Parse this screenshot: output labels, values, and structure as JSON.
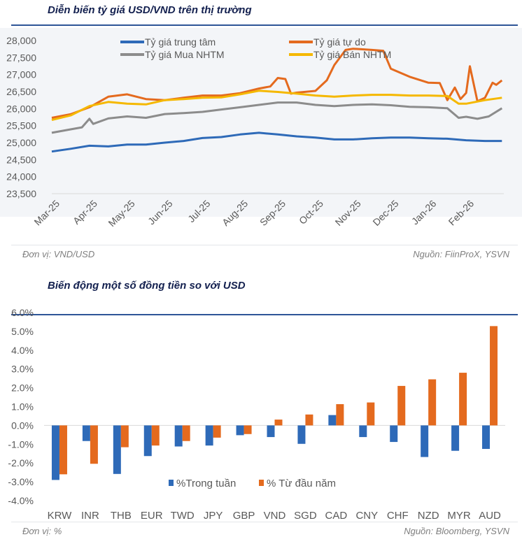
{
  "top": {
    "title": "Diễn biến tỷ giá USD/VND trên thị trường",
    "unit_note": "Đơn vị: VND/USD",
    "source_note": "Nguồn: FiinProX, YSVN"
  },
  "bottom": {
    "title": "Biến động một số đồng tiền so với USD",
    "unit_note": "Đơn vị: %",
    "source_note": "Nguồn: Bloomberg, YSVN"
  },
  "chart_data": [
    {
      "type": "line",
      "title": "Diễn biến tỷ giá USD/VND trên thị trường",
      "xlabel": "",
      "ylabel": "",
      "x_unit": "months since Mar-25",
      "x_ticks": [
        "Mar-25",
        "Apr-25",
        "May-25",
        "Jun-25",
        "Jul-25",
        "Aug-25",
        "Sep-25",
        "Oct-25",
        "Nov-25",
        "Dec-25",
        "Jan-26",
        "Feb-26"
      ],
      "y_ticks": [
        "28,000",
        "27,500",
        "27,000",
        "26,500",
        "26,000",
        "25,500",
        "25,000",
        "24,500",
        "24,000",
        "23,500"
      ],
      "ylim": [
        23500,
        28000
      ],
      "legend": "top",
      "grid": false,
      "series": [
        {
          "name": "Tỷ giá trung tâm",
          "color": "#2e6ab8",
          "x": [
            0,
            0.5,
            1,
            1.5,
            2,
            2.5,
            3,
            3.5,
            4,
            4.5,
            5,
            5.5,
            6,
            6.5,
            7,
            7.5,
            8,
            8.5,
            9,
            9.5,
            10,
            10.5,
            11,
            11.5,
            11.95
          ],
          "y": [
            24740,
            24820,
            24910,
            24890,
            24945,
            24945,
            25000,
            25050,
            25135,
            25165,
            25240,
            25290,
            25240,
            25185,
            25150,
            25095,
            25095,
            25130,
            25150,
            25150,
            25130,
            25115,
            25070,
            25050,
            25050
          ]
        },
        {
          "name": "Tỷ giá tự do",
          "color": "#e46a1e",
          "x": [
            0,
            0.5,
            1,
            1.5,
            2,
            2.5,
            3,
            3.5,
            4,
            4.5,
            5,
            5.5,
            5.8,
            6,
            6.2,
            6.35,
            6.5,
            7,
            7.3,
            7.5,
            7.8,
            8,
            8.5,
            8.8,
            9,
            9.5,
            10,
            10.3,
            10.5,
            10.7,
            10.85,
            11,
            11.1,
            11.3,
            11.5,
            11.7,
            11.8,
            11.95
          ],
          "y": [
            25730,
            25835,
            26040,
            26350,
            26420,
            26280,
            26250,
            26320,
            26385,
            26385,
            26455,
            26590,
            26650,
            26900,
            26870,
            26440,
            26470,
            26520,
            26830,
            27280,
            27725,
            27760,
            27725,
            27700,
            27175,
            26935,
            26760,
            26750,
            26250,
            26620,
            26280,
            26460,
            27245,
            26215,
            26320,
            26760,
            26700,
            26830
          ]
        },
        {
          "name": "Tỷ giá Mua NHTM",
          "color": "#8c8c8c",
          "x": [
            0,
            0.5,
            0.8,
            1,
            1.1,
            1.5,
            2,
            2.5,
            3,
            3.5,
            4,
            4.5,
            5,
            5.5,
            6,
            6.5,
            7,
            7.5,
            8,
            8.5,
            9,
            9.5,
            10,
            10.5,
            10.8,
            11,
            11.3,
            11.6,
            11.95
          ],
          "y": [
            25290,
            25390,
            25450,
            25700,
            25550,
            25710,
            25770,
            25730,
            25840,
            25870,
            25905,
            25975,
            26040,
            26110,
            26180,
            26180,
            26110,
            26075,
            26110,
            26125,
            26100,
            26055,
            26040,
            26010,
            25730,
            25760,
            25700,
            25770,
            26010
          ]
        },
        {
          "name": "Tỷ giá Bán NHTM",
          "color": "#f5b800",
          "x": [
            0,
            0.5,
            1,
            1.5,
            2,
            2.5,
            3,
            3.5,
            4,
            4.5,
            5,
            5.5,
            6,
            6.5,
            7,
            7.5,
            8,
            8.5,
            9,
            9.5,
            10,
            10.5,
            10.8,
            11,
            11.5,
            11.95
          ],
          "y": [
            25665,
            25800,
            26075,
            26195,
            26145,
            26125,
            26250,
            26280,
            26320,
            26330,
            26420,
            26525,
            26490,
            26440,
            26385,
            26350,
            26385,
            26405,
            26405,
            26385,
            26385,
            26370,
            26145,
            26145,
            26250,
            26320
          ]
        }
      ]
    },
    {
      "type": "bar",
      "title": "Biến động một số đồng tiền so với USD",
      "xlabel": "",
      "ylabel": "",
      "categories": [
        "KRW",
        "INR",
        "THB",
        "EUR",
        "TWD",
        "JPY",
        "GBP",
        "VND",
        "SGD",
        "CAD",
        "CNY",
        "CHF",
        "NZD",
        "MYR",
        "AUD"
      ],
      "y_ticks": [
        "6.0%",
        "5.0%",
        "4.0%",
        "3.0%",
        "2.0%",
        "1.0%",
        "0.0%",
        "-1.0%",
        "-2.0%",
        "-3.0%",
        "-4.0%"
      ],
      "ylim": [
        -4,
        6
      ],
      "legend": "bottom-center",
      "grid": false,
      "series": [
        {
          "name": "%Trong tuần",
          "color": "#2e6ab8",
          "values": [
            -2.9,
            -0.83,
            -2.58,
            -1.63,
            -1.12,
            -1.07,
            -0.52,
            -0.62,
            -0.98,
            0.55,
            -0.62,
            -0.88,
            -1.68,
            -1.35,
            -1.25
          ]
        },
        {
          "name": "% Từ đầu năm",
          "color": "#e46a1e",
          "values": [
            -2.6,
            -2.04,
            -1.16,
            -1.07,
            -0.83,
            -0.65,
            -0.46,
            0.31,
            0.58,
            1.13,
            1.22,
            2.1,
            2.45,
            2.8,
            5.28
          ]
        }
      ]
    }
  ]
}
